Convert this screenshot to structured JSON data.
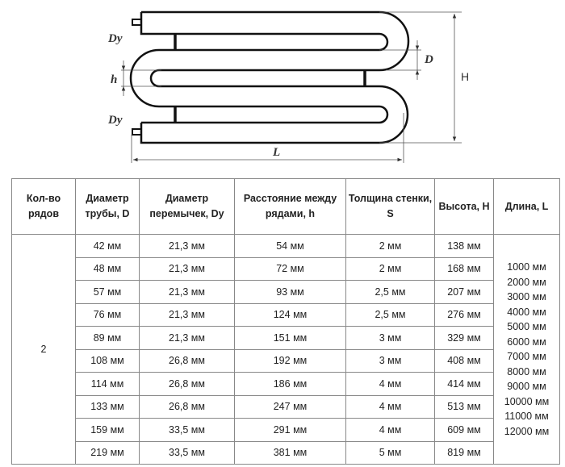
{
  "diagram": {
    "labels": {
      "dy_top": "Dy",
      "dy_bottom": "Dy",
      "h": "h",
      "d": "D",
      "height": "H",
      "length": "L"
    }
  },
  "table": {
    "headers": [
      "Кол-во рядов",
      "Диаметр трубы, D",
      "Диаметр перемычек, Dy",
      "Расстояние между рядами, h",
      "Толщина стенки, S",
      "Высота, H",
      "Длина, L"
    ],
    "rows_count": "2",
    "rows": [
      [
        "42 мм",
        "21,3 мм",
        "54 мм",
        "2 мм",
        "138 мм"
      ],
      [
        "48 мм",
        "21,3 мм",
        "72 мм",
        "2 мм",
        "168 мм"
      ],
      [
        "57 мм",
        "21,3 мм",
        "93 мм",
        "2,5 мм",
        "207 мм"
      ],
      [
        "76 мм",
        "21,3 мм",
        "124 мм",
        "2,5 мм",
        "276 мм"
      ],
      [
        "89 мм",
        "21,3 мм",
        "151 мм",
        "3 мм",
        "329 мм"
      ],
      [
        "108 мм",
        "26,8 мм",
        "192 мм",
        "3 мм",
        "408 мм"
      ],
      [
        "114 мм",
        "26,8 мм",
        "186 мм",
        "4 мм",
        "414 мм"
      ],
      [
        "133 мм",
        "26,8 мм",
        "247 мм",
        "4 мм",
        "513 мм"
      ],
      [
        "159 мм",
        "33,5 мм",
        "291 мм",
        "4 мм",
        "609 мм"
      ],
      [
        "219 мм",
        "33,5 мм",
        "381 мм",
        "5 мм",
        "819 мм"
      ]
    ],
    "lengths": [
      "1000 мм",
      "2000 мм",
      "3000 мм",
      "4000 мм",
      "5000 мм",
      "6000 мм",
      "7000 мм",
      "8000 мм",
      "9000 мм",
      "10000 мм",
      "11000 мм",
      "12000 мм"
    ]
  }
}
